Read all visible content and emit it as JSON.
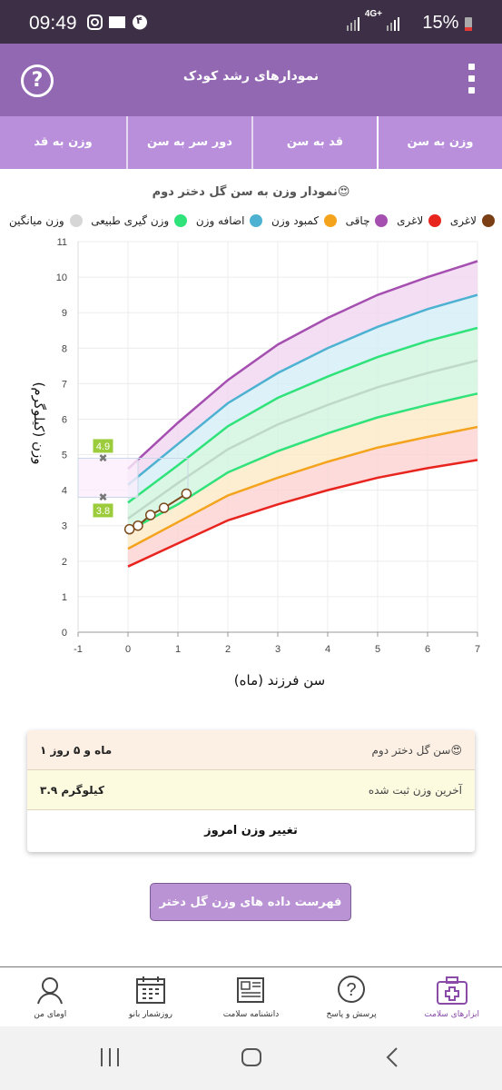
{
  "status": {
    "time": "09:49",
    "battery": "15%",
    "network": "4G+",
    "notif_badge": "۴"
  },
  "appbar": {
    "title": "نمودارهای رشد کودک",
    "help": "?"
  },
  "tabs": [
    {
      "label": "وزن به سن",
      "active": true
    },
    {
      "label": "قد به سن",
      "active": false
    },
    {
      "label": "دور سر به سن",
      "active": false
    },
    {
      "label": "وزن به قد",
      "active": false
    }
  ],
  "chart_data": {
    "type": "area",
    "title": "نمودار وزن به سن گل دختر دوم😍",
    "xlabel": "سن فرزند (ماه)",
    "ylabel": "وزن (کیلوگرم)",
    "xlim": [
      -1,
      7
    ],
    "ylim": [
      0,
      11
    ],
    "x_ticks": [
      "-1",
      "0",
      "1",
      "2",
      "3",
      "4",
      "5",
      "6",
      "7"
    ],
    "y_ticks": [
      "0",
      "1",
      "2",
      "3",
      "4",
      "5",
      "6",
      "7",
      "8",
      "9",
      "10",
      "11"
    ],
    "grid": true,
    "x": [
      0,
      1,
      2,
      3,
      4,
      5,
      6,
      7
    ],
    "series": [
      {
        "name": "لاغری",
        "color": "#e8241f",
        "values": [
          1.85,
          2.5,
          3.15,
          3.6,
          4.0,
          4.35,
          4.62,
          4.85
        ]
      },
      {
        "name": "کمبود وزن",
        "color": "#f4a31c",
        "values": [
          2.35,
          3.1,
          3.85,
          4.35,
          4.8,
          5.2,
          5.5,
          5.78
        ]
      },
      {
        "name": "وزن گیری طبیعی",
        "color": "#2fe27a",
        "values": [
          2.85,
          3.6,
          4.5,
          5.1,
          5.6,
          6.05,
          6.4,
          6.72
        ]
      },
      {
        "name": "وزن میانگین",
        "color": "#d6d6d6",
        "line_color": "#bfd9c8",
        "values": [
          3.2,
          4.2,
          5.15,
          5.85,
          6.4,
          6.9,
          7.3,
          7.65
        ]
      },
      {
        "name": "وزن گیری طبیعی",
        "color": "#2fe27a",
        "values": [
          3.65,
          4.7,
          5.8,
          6.6,
          7.2,
          7.75,
          8.2,
          8.57
        ]
      },
      {
        "name": "اضافه وزن",
        "color": "#4db2d1",
        "values": [
          4.15,
          5.3,
          6.45,
          7.3,
          8.0,
          8.6,
          9.1,
          9.5
        ]
      },
      {
        "name": "چاقی",
        "color": "#a54fb0",
        "values": [
          4.6,
          5.9,
          7.1,
          8.1,
          8.85,
          9.5,
          10.0,
          10.45
        ]
      }
    ],
    "bands": [
      {
        "color": "#fcd5d3"
      },
      {
        "color": "#fdebc9"
      },
      {
        "color": "#d3f5e1"
      },
      {
        "color": "#d3f5e1"
      },
      {
        "color": "#d6eef7"
      },
      {
        "color": "#f2d8f2"
      }
    ],
    "child_points": {
      "color": "#7a4a1c",
      "x": [
        0.03,
        0.2,
        0.45,
        0.72,
        1.17
      ],
      "y": [
        2.9,
        3.0,
        3.3,
        3.5,
        3.9
      ]
    },
    "range_markers": {
      "upper": "4.9",
      "lower": "3.8",
      "upper_value": 4.9,
      "lower_value": 3.8,
      "x": -0.5
    },
    "legend": [
      {
        "name": "لاغری",
        "color": "#7a3f14"
      },
      {
        "name": "لاغری",
        "color": "#e8241f"
      },
      {
        "name": "چاقی",
        "color": "#a54fb0"
      },
      {
        "name": "کمبود وزن",
        "color": "#f4a31c"
      },
      {
        "name": "اضافه وزن",
        "color": "#4db2d1"
      },
      {
        "name": "وزن گیری طبیعی",
        "color": "#2fe27a"
      },
      {
        "name": "وزن میانگین",
        "color": "#d6d6d6"
      }
    ]
  },
  "info": {
    "age_label": "سن گل دختر دوم😍",
    "age_value": "۱ ماه و ۵ روز",
    "last_weight_label": "آخرین وزن ثبت شده",
    "last_weight_value": "۳.۹ کیلوگرم",
    "change_button": "تغییر وزن امروز"
  },
  "list_button": "فهرست داده های وزن گل دختر دوم😍",
  "bottom_nav": [
    {
      "label": "ابزارهای سلامت",
      "icon": "medical-kit-icon",
      "active": true
    },
    {
      "label": "پرسش و پاسخ",
      "icon": "question-bubble-icon",
      "active": false
    },
    {
      "label": "دانشنامه سلامت",
      "icon": "newspaper-icon",
      "active": false
    },
    {
      "label": "روزشمار بانو",
      "icon": "calendar-icon",
      "active": false
    },
    {
      "label": "اومای من",
      "icon": "profile-icon",
      "active": false
    }
  ]
}
